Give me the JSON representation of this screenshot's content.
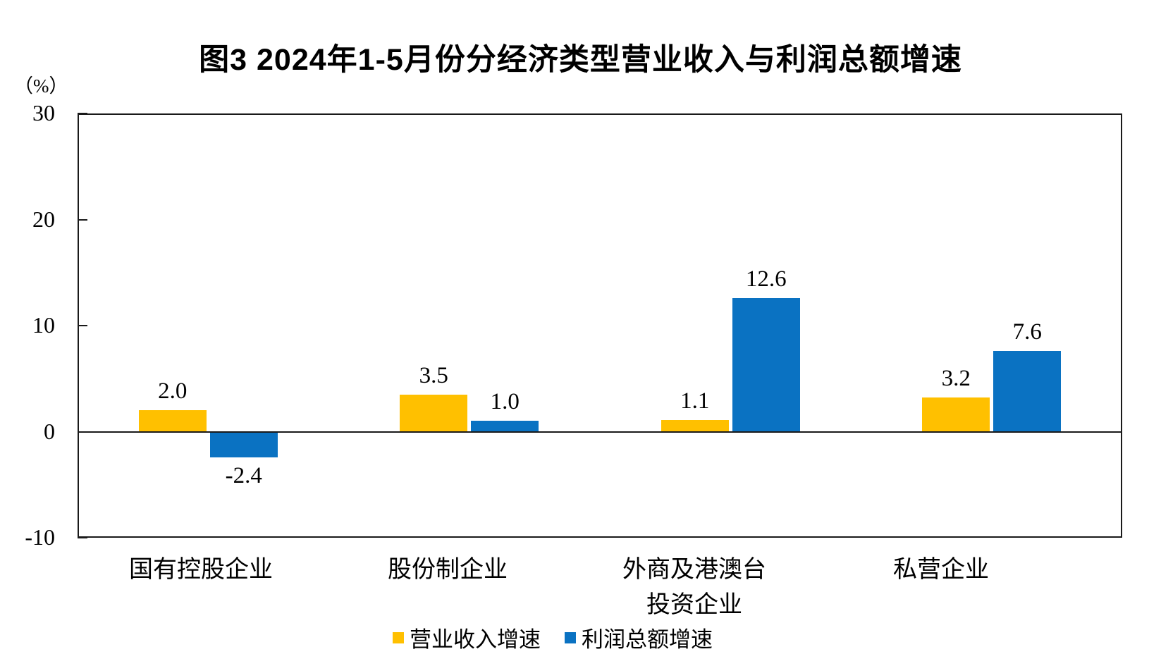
{
  "chart_data": {
    "type": "bar",
    "title": "图3 2024年1-5月份分经济类型营业收入与利润总额增速",
    "ylabel": "（%）",
    "xlabel": "",
    "ylim": [
      -10,
      30
    ],
    "yticks": [
      30,
      20,
      10,
      0,
      -10
    ],
    "grid": false,
    "legend_position": "bottom",
    "categories": [
      "国有控股企业",
      "股份制企业",
      "外商及港澳台\n投资企业",
      "私营企业"
    ],
    "series": [
      {
        "id": "operating-revenue-growth",
        "name": "营业收入增速",
        "color": "#FFC000",
        "values": [
          2.0,
          3.5,
          1.1,
          3.2
        ],
        "labels": [
          "2.0",
          "3.5",
          "1.1",
          "3.2"
        ]
      },
      {
        "id": "total-profit-growth",
        "name": "利润总额增速",
        "color": "#0A72C2",
        "values": [
          -2.4,
          1.0,
          12.6,
          7.6
        ],
        "labels": [
          "-2.4",
          "1.0",
          "12.6",
          "7.6"
        ]
      }
    ],
    "frame_color": "#1a1a1a"
  }
}
